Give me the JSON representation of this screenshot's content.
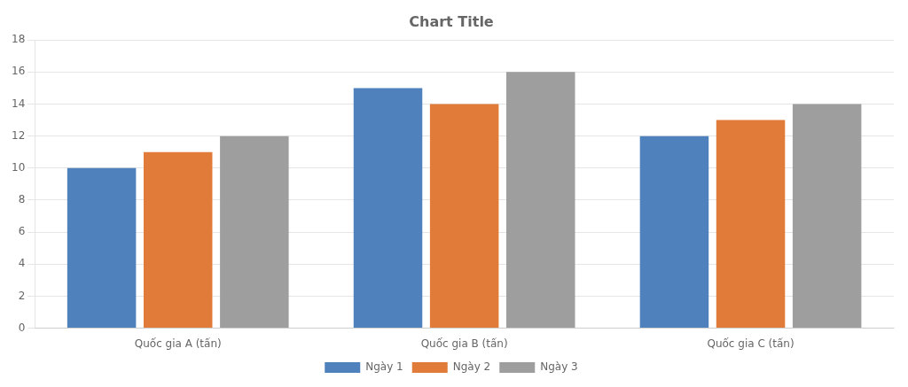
{
  "chart_data": {
    "type": "bar",
    "title": "Chart Title",
    "categories": [
      "Quốc gia A (tấn)",
      "Quốc gia B (tấn)",
      "Quốc gia C (tấn)"
    ],
    "series": [
      {
        "name": "Ngày 1",
        "color": "#4F81BD",
        "values": [
          10,
          15,
          12
        ]
      },
      {
        "name": "Ngày 2",
        "color": "#E07B39",
        "values": [
          11,
          14,
          13
        ]
      },
      {
        "name": "Ngày 3",
        "color": "#9E9E9E",
        "values": [
          12,
          16,
          14
        ]
      }
    ],
    "ylim": [
      0,
      18
    ],
    "yticks": [
      0,
      2,
      4,
      6,
      8,
      10,
      12,
      14,
      16,
      18
    ],
    "grid": true,
    "legend": "bottom"
  }
}
